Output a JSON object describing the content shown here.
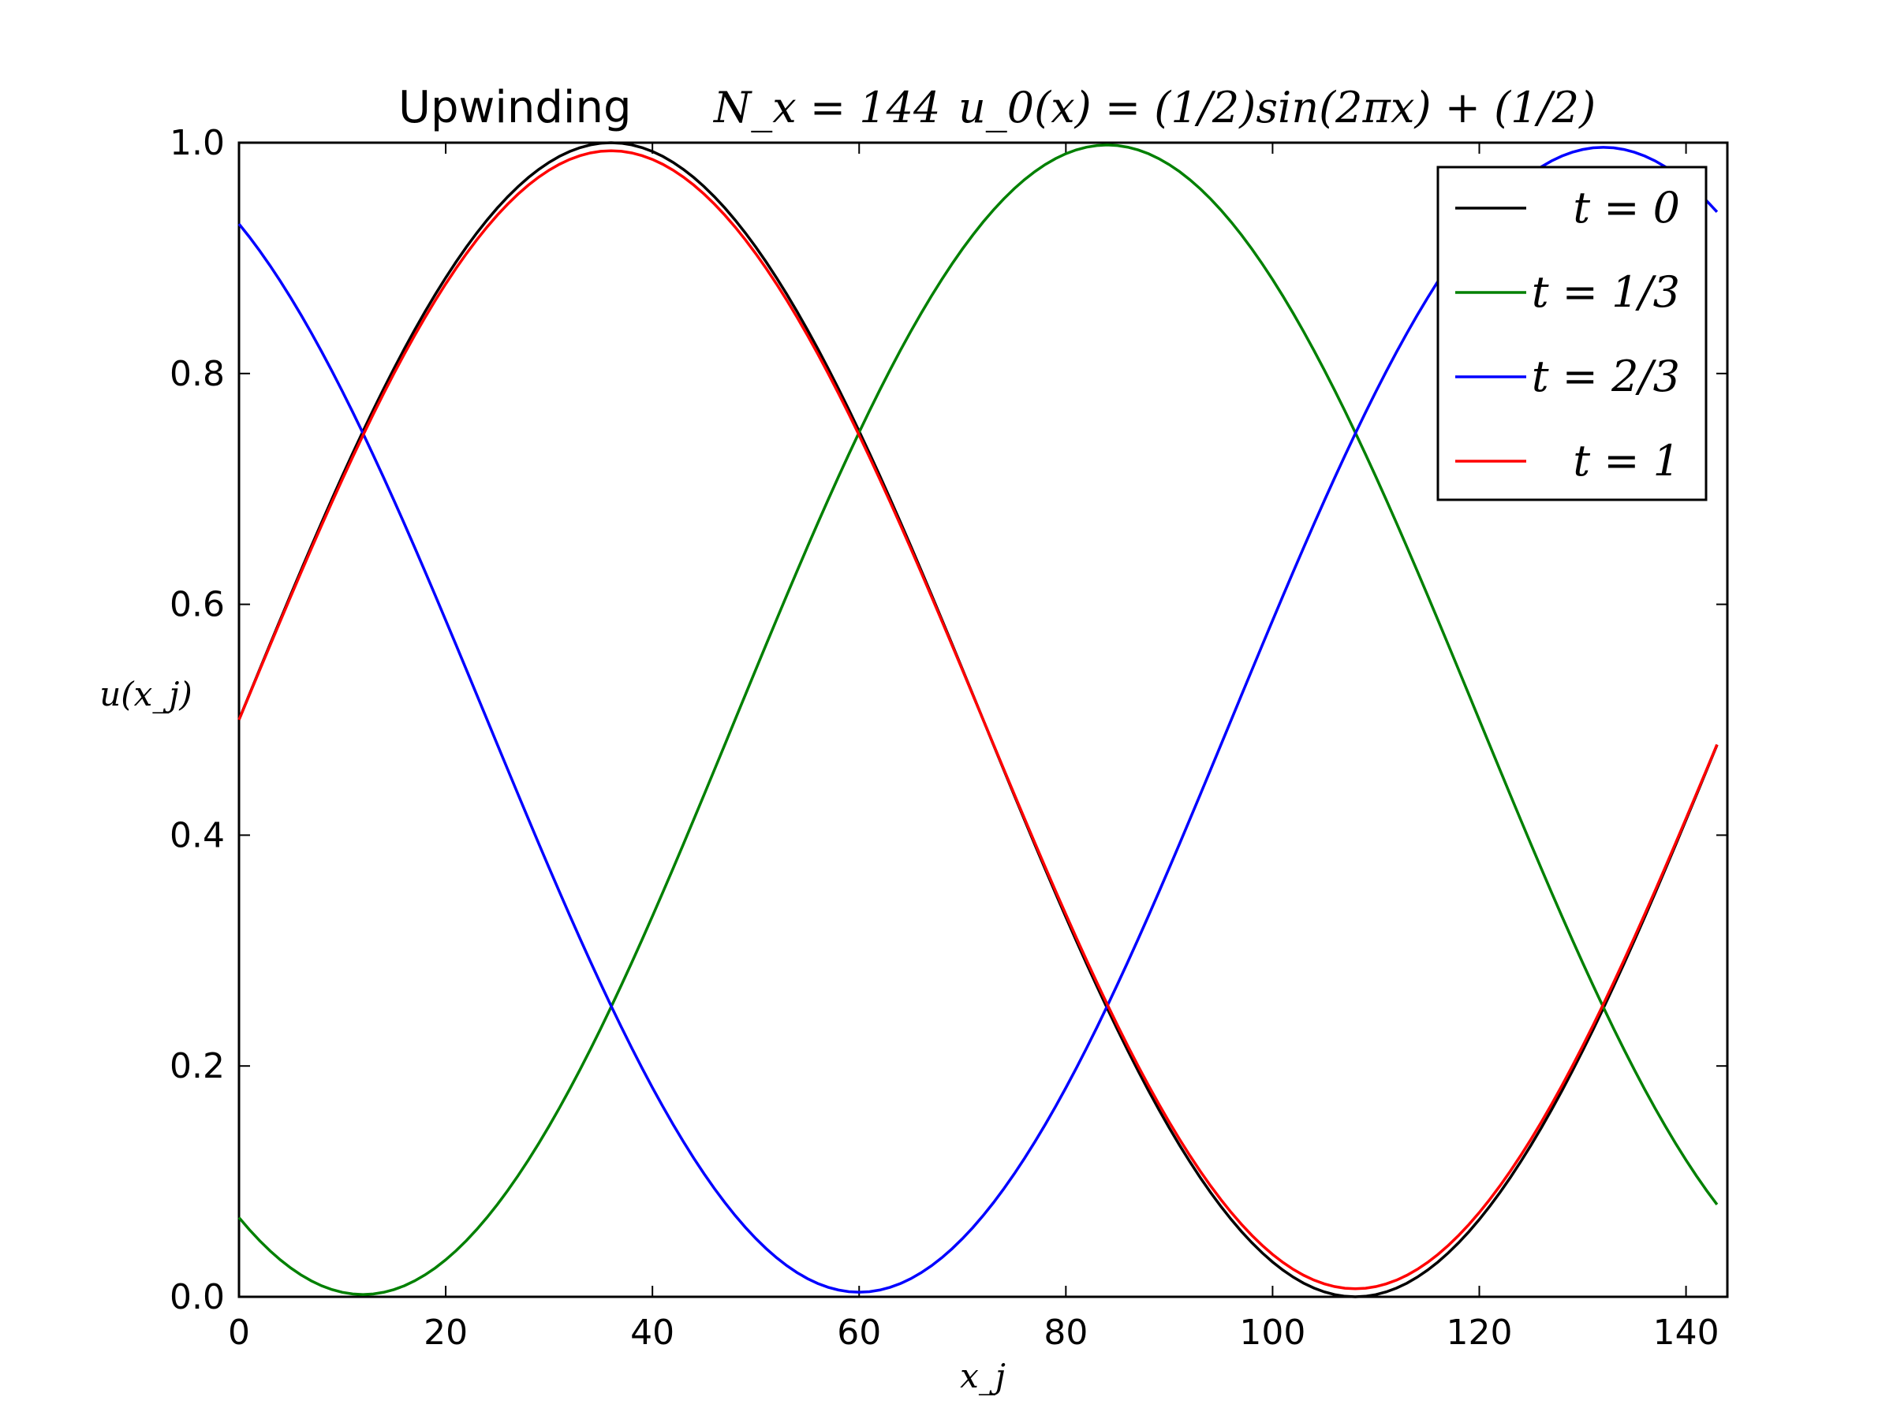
{
  "chart_data": {
    "type": "line",
    "title": {
      "method": "Upwinding",
      "grid_math": "N_x = 144",
      "init_math": "u_0(x) = (1/2)sin(2πx) + (1/2)"
    },
    "xlabel": "x_j",
    "ylabel": "u(x_j)",
    "xlim": [
      0,
      144
    ],
    "ylim": [
      0.0,
      1.0
    ],
    "xticks": [
      "0",
      "20",
      "40",
      "60",
      "80",
      "100",
      "120",
      "140"
    ],
    "yticks": [
      "0.0",
      "0.2",
      "0.4",
      "0.6",
      "0.8",
      "1.0"
    ],
    "grid": false,
    "legend_position": "top-right",
    "series": [
      {
        "name": "t = 0",
        "color": "#000000",
        "t": 0,
        "peak": 1.0,
        "trough": 0.0
      },
      {
        "name": "t = 1/3",
        "color": "#008000",
        "t": 0.3333,
        "peak": 0.998,
        "trough": 0.002
      },
      {
        "name": "t = 2/3",
        "color": "#0000ff",
        "t": 0.6667,
        "peak": 0.996,
        "trough": 0.004
      },
      {
        "name": "t = 1",
        "color": "#ff0000",
        "t": 1.0,
        "peak": 0.993,
        "trough": 0.007
      }
    ],
    "n_points": 144,
    "x_step": 1
  }
}
